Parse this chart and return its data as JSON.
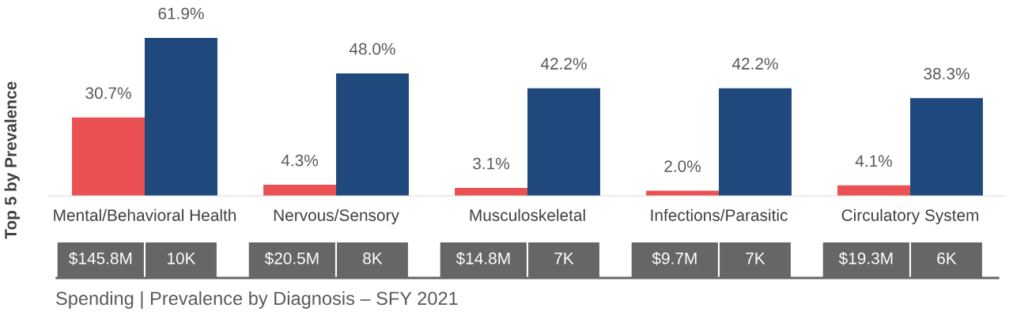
{
  "chart_data": {
    "type": "bar",
    "title": "Spending | Prevalence by Diagnosis – SFY 2021",
    "ylabel": "Top 5 by Prevalence",
    "categories": [
      "Mental/Behavioral Health",
      "Nervous/Sensory",
      "Musculoskeletal",
      "Infections/Parasitic",
      "Circulatory System"
    ],
    "series": [
      {
        "color": "#eb5052",
        "values": [
          30.7,
          4.3,
          3.1,
          2.0,
          4.1
        ],
        "value_labels": [
          "30.7%",
          "4.3%",
          "3.1%",
          "2.0%",
          "4.1%"
        ]
      },
      {
        "color": "#1f497d",
        "values": [
          61.9,
          48.0,
          42.2,
          42.2,
          38.3
        ],
        "value_labels": [
          "61.9%",
          "48.0%",
          "42.2%",
          "42.2%",
          "38.3%"
        ]
      }
    ],
    "annotations": [
      "$145.8M",
      "10K",
      "$20.5M",
      "8K",
      "$14.8M",
      "7K",
      "$9.7M",
      "7K",
      "$19.3M",
      "6K"
    ],
    "tick_labels": "x",
    "grid": false,
    "legend": false
  }
}
